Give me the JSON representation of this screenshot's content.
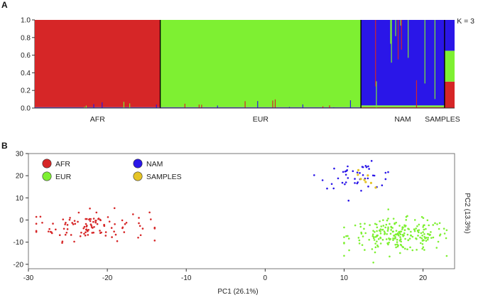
{
  "chart_data": [
    {
      "type": "bar",
      "panel": "A",
      "subtype": "stacked ancestry proportions (ADMIXTURE-style)",
      "annotation": "K = 3",
      "y_ticks": [
        "0.0",
        "0.2",
        "0.4",
        "0.6",
        "0.8",
        "1.0"
      ],
      "ylim": [
        0,
        1
      ],
      "categories": [
        "AFR",
        "EUR",
        "NAM",
        "SAMPLES"
      ],
      "approx_sample_counts": [
        150,
        240,
        100,
        12
      ],
      "series": [
        {
          "name": "red component",
          "color": "#d62627",
          "values": [
            0.99,
            0.005,
            0.01,
            0.3
          ]
        },
        {
          "name": "green component",
          "color": "#7ef032",
          "values": [
            0.005,
            0.99,
            0.02,
            0.35
          ]
        },
        {
          "name": "blue component",
          "color": "#2a16e8",
          "values": [
            0.005,
            0.005,
            0.97,
            0.35
          ]
        }
      ]
    },
    {
      "type": "scatter",
      "panel": "B",
      "xlabel": "PC1 (26.1%)",
      "ylabel": "PC2 (13.3%)",
      "x_ticks": [
        -30,
        -20,
        -10,
        0,
        10,
        20
      ],
      "y_ticks": [
        -20,
        -10,
        0,
        10,
        20,
        30
      ],
      "xlim": [
        -30,
        24
      ],
      "ylim": [
        -22,
        30
      ],
      "series": [
        {
          "name": "AFR",
          "color": "#d62627",
          "center": [
            -22,
            -2.5
          ],
          "spread": [
            3.6,
            3.4
          ],
          "x_range": [
            -29,
            -14
          ],
          "n": 110
        },
        {
          "name": "EUR",
          "color": "#7ef032",
          "center": [
            17,
            -7
          ],
          "spread": [
            3.2,
            3.6
          ],
          "x_range": [
            10,
            23
          ],
          "n": 230
        },
        {
          "name": "NAM",
          "color": "#2a16e8",
          "center": [
            12,
            20
          ],
          "spread": [
            2.5,
            2.8
          ],
          "x_range": [
            4,
            17
          ],
          "n": 45
        },
        {
          "name": "SAMPLES",
          "color": "#e5c426",
          "center": [
            12.5,
            18
          ],
          "spread": [
            0.8,
            2.0
          ],
          "x_range": [
            11,
            14
          ],
          "n": 8
        }
      ]
    }
  ]
}
